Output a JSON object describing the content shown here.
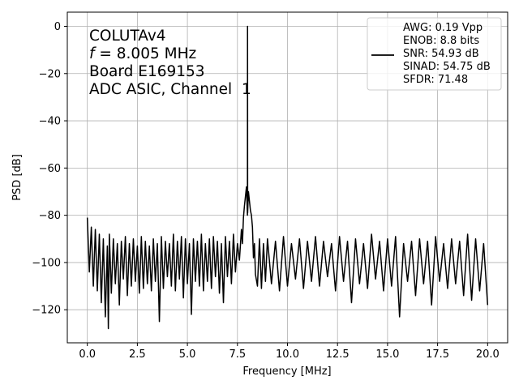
{
  "chart_data": {
    "type": "line",
    "xlabel": "Frequency [MHz]",
    "ylabel": "PSD [dB]",
    "xlim": [
      -1.0,
      21.0
    ],
    "ylim": [
      -134,
      6
    ],
    "xticks": [
      0.0,
      2.5,
      5.0,
      7.5,
      10.0,
      12.5,
      15.0,
      17.5,
      20.0
    ],
    "xtick_labels": [
      "0.0",
      "2.5",
      "5.0",
      "7.5",
      "10.0",
      "12.5",
      "15.0",
      "17.5",
      "20.0"
    ],
    "yticks": [
      0,
      -20,
      -40,
      -60,
      -80,
      -100,
      -120
    ],
    "ytick_labels": [
      "0",
      "−20",
      "−40",
      "−60",
      "−80",
      "−100",
      "−120"
    ],
    "grid": true,
    "annotation_lines": [
      {
        "text": "COLUTAv4"
      },
      {
        "italic_prefix": "f",
        "text": " = 8.005 MHz"
      },
      {
        "text": "Board E169153"
      },
      {
        "text": "ADC ASIC, Channel  1"
      }
    ],
    "legend": {
      "placement": "top-right",
      "lines": [
        "AWG: 0.19 Vpp",
        "ENOB: 8.8 bits",
        "SNR: 54.93 dB",
        "SINAD: 54.75 dB",
        "SFDR: 71.48"
      ]
    },
    "series": [
      {
        "color": "#000000",
        "x": [
          0.0,
          0.1,
          0.2,
          0.3,
          0.4,
          0.5,
          0.6,
          0.7,
          0.8,
          0.9,
          1.0,
          1.05,
          1.1,
          1.2,
          1.3,
          1.4,
          1.5,
          1.6,
          1.7,
          1.8,
          1.9,
          2.0,
          2.1,
          2.2,
          2.3,
          2.4,
          2.5,
          2.6,
          2.7,
          2.8,
          2.9,
          3.0,
          3.1,
          3.2,
          3.3,
          3.4,
          3.5,
          3.6,
          3.7,
          3.8,
          3.9,
          4.0,
          4.1,
          4.2,
          4.3,
          4.4,
          4.5,
          4.6,
          4.7,
          4.8,
          4.9,
          5.0,
          5.1,
          5.2,
          5.3,
          5.4,
          5.5,
          5.6,
          5.7,
          5.8,
          5.9,
          6.0,
          6.1,
          6.2,
          6.3,
          6.4,
          6.5,
          6.6,
          6.7,
          6.8,
          6.9,
          7.0,
          7.1,
          7.2,
          7.3,
          7.4,
          7.5,
          7.6,
          7.7,
          7.75,
          7.8,
          7.85,
          7.9,
          7.95,
          8.0,
          8.005,
          8.01,
          8.05,
          8.1,
          8.15,
          8.2,
          8.25,
          8.3,
          8.35,
          8.4,
          8.5,
          8.6,
          8.7,
          8.8,
          8.9,
          9.0,
          9.2,
          9.4,
          9.6,
          9.8,
          10.0,
          10.2,
          10.4,
          10.6,
          10.8,
          11.0,
          11.2,
          11.4,
          11.6,
          11.8,
          12.0,
          12.2,
          12.4,
          12.6,
          12.8,
          13.0,
          13.2,
          13.4,
          13.6,
          13.8,
          14.0,
          14.2,
          14.4,
          14.6,
          14.8,
          15.0,
          15.2,
          15.4,
          15.6,
          15.8,
          16.0,
          16.2,
          16.4,
          16.6,
          16.8,
          17.0,
          17.2,
          17.4,
          17.6,
          17.8,
          18.0,
          18.2,
          18.4,
          18.6,
          18.8,
          19.0,
          19.2,
          19.4,
          19.6,
          19.8,
          20.0
        ],
        "y": [
          -81,
          -104,
          -85,
          -110,
          -86,
          -112,
          -88,
          -117,
          -90,
          -123,
          -93,
          -128,
          -88,
          -113,
          -90,
          -109,
          -92,
          -118,
          -91,
          -107,
          -89,
          -114,
          -92,
          -110,
          -90,
          -108,
          -93,
          -113,
          -89,
          -111,
          -91,
          -109,
          -93,
          -112,
          -90,
          -108,
          -92,
          -125,
          -89,
          -111,
          -91,
          -106,
          -92,
          -110,
          -88,
          -112,
          -91,
          -107,
          -89,
          -115,
          -90,
          -109,
          -92,
          -122,
          -90,
          -108,
          -91,
          -110,
          -88,
          -112,
          -92,
          -108,
          -90,
          -111,
          -89,
          -106,
          -91,
          -113,
          -92,
          -117,
          -89,
          -106,
          -91,
          -109,
          -88,
          -104,
          -92,
          -99,
          -86,
          -92,
          -81,
          -76,
          -72,
          -68,
          -80,
          0,
          -79,
          -70,
          -74,
          -78,
          -80,
          -85,
          -98,
          -92,
          -105,
          -110,
          -90,
          -111,
          -92,
          -108,
          -90,
          -109,
          -91,
          -112,
          -89,
          -110,
          -92,
          -107,
          -90,
          -111,
          -91,
          -108,
          -89,
          -110,
          -91,
          -106,
          -92,
          -112,
          -89,
          -108,
          -91,
          -117,
          -90,
          -109,
          -92,
          -111,
          -88,
          -107,
          -91,
          -112,
          -90,
          -110,
          -89,
          -123,
          -92,
          -108,
          -91,
          -114,
          -90,
          -109,
          -91,
          -118,
          -89,
          -108,
          -92,
          -111,
          -90,
          -109,
          -91,
          -114,
          -88,
          -116,
          -90,
          -112,
          -92,
          -118
        ]
      }
    ]
  }
}
